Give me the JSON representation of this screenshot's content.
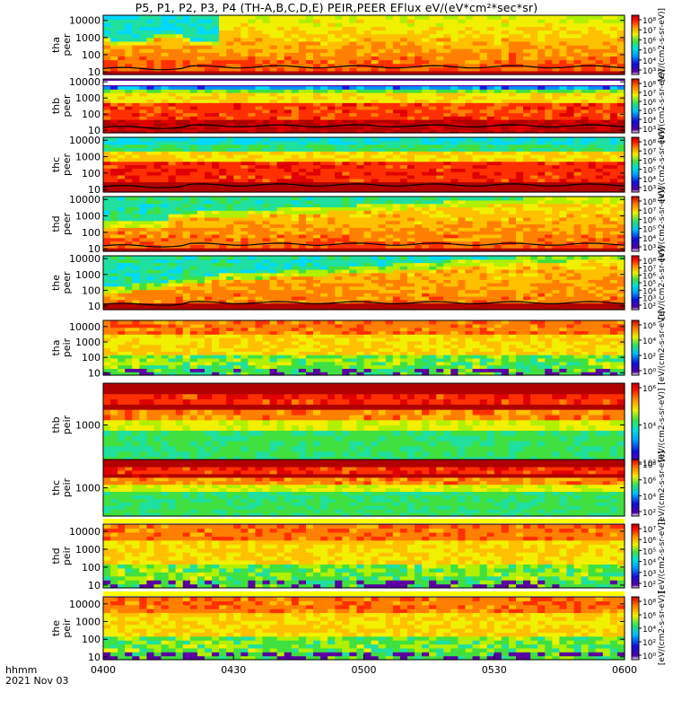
{
  "title": "P5, P1, P2, P3, P4 (TH-A,B,C,D,E) PEIR,PEER EFlux eV/(eV*cm²*sec*sr)",
  "time_axis": {
    "ticks": [
      "0400",
      "0430",
      "0500",
      "0530",
      "0600"
    ],
    "label": "hhmm",
    "date": "2021 Nov 03"
  },
  "colorbar_label": "[eV/(cm2-s-sr-eV)]",
  "chart_data": [
    {
      "type": "heatmap",
      "panel": "thaeer",
      "ylabel": [
        "tha",
        "peer"
      ],
      "yticks": [
        "10",
        "100",
        "1000",
        "10000"
      ],
      "ylog": true,
      "ylim": [
        7,
        20000
      ],
      "cbar_ticks": [
        "10⁸",
        "10⁷",
        "10⁶",
        "10⁵",
        "10⁴",
        "10³"
      ]
    },
    {
      "type": "heatmap",
      "panel": "thbeer",
      "ylabel": [
        "thb",
        "peer"
      ],
      "yticks": [
        "10",
        "100",
        "1000",
        "10000"
      ],
      "ylog": true,
      "ylim": [
        7,
        15000
      ],
      "cbar_ticks": [
        "10⁸",
        "10⁷",
        "10⁶",
        "10⁵",
        "10⁴",
        "10³"
      ]
    },
    {
      "type": "heatmap",
      "panel": "thceer",
      "ylabel": [
        "thc",
        "peer"
      ],
      "yticks": [
        "10",
        "100",
        "1000",
        "10000"
      ],
      "ylog": true,
      "ylim": [
        7,
        15000
      ],
      "cbar_ticks": [
        "10⁸",
        "10⁷",
        "10⁶",
        "10⁵",
        "10⁴",
        "10³"
      ]
    },
    {
      "type": "heatmap",
      "panel": "thdeer",
      "ylabel": [
        "thd",
        "peer"
      ],
      "yticks": [
        "10",
        "100",
        "1000",
        "10000"
      ],
      "ylog": true,
      "ylim": [
        7,
        15000
      ],
      "cbar_ticks": [
        "10⁸",
        "10⁷",
        "10⁶",
        "10⁵",
        "10⁴",
        "10³"
      ]
    },
    {
      "type": "heatmap",
      "panel": "theeer",
      "ylabel": [
        "the",
        "peer"
      ],
      "yticks": [
        "10",
        "100",
        "1000",
        "10000"
      ],
      "ylog": true,
      "ylim": [
        6,
        15000
      ],
      "cbar_ticks": [
        "10⁸",
        "10⁷",
        "10⁶",
        "10⁵",
        "10⁴",
        "10³",
        "10²"
      ]
    },
    {
      "type": "heatmap",
      "panel": "thaeir",
      "ylabel": [
        "tha",
        "peir"
      ],
      "yticks": [
        "10",
        "100",
        "1000",
        "10000"
      ],
      "ylog": true,
      "ylim": [
        7,
        25000
      ],
      "cbar_ticks": [
        "10⁶",
        "10⁴",
        "10²",
        "10⁰"
      ]
    },
    {
      "type": "heatmap",
      "panel": "thbeir",
      "ylabel": [
        "thb",
        "peir"
      ],
      "yticks": [
        "1000"
      ],
      "ylog": true,
      "ylim": [
        200,
        5000
      ],
      "cbar_ticks": [
        "10⁶",
        "10⁴",
        "10²"
      ]
    },
    {
      "type": "heatmap",
      "panel": "thceir",
      "ylabel": [
        "thc",
        "peir"
      ],
      "yticks": [
        "1000"
      ],
      "ylog": true,
      "ylim": [
        200,
        5000
      ],
      "cbar_ticks": [
        "10⁸",
        "10⁶",
        "10⁴",
        "10²"
      ]
    },
    {
      "type": "heatmap",
      "panel": "thdeir",
      "ylabel": [
        "thd",
        "peir"
      ],
      "yticks": [
        "10",
        "100",
        "1000",
        "10000"
      ],
      "ylog": true,
      "ylim": [
        7,
        25000
      ],
      "cbar_ticks": [
        "10⁷",
        "10⁶",
        "10⁵",
        "10⁴",
        "10³",
        "10²"
      ]
    },
    {
      "type": "heatmap",
      "panel": "theeir",
      "ylabel": [
        "the",
        "peir"
      ],
      "yticks": [
        "10",
        "100",
        "1000",
        "10000"
      ],
      "ylog": true,
      "ylim": [
        7,
        25000
      ],
      "cbar_ticks": [
        "10⁸",
        "10⁶",
        "10⁴",
        "10²",
        "10⁰"
      ]
    }
  ]
}
